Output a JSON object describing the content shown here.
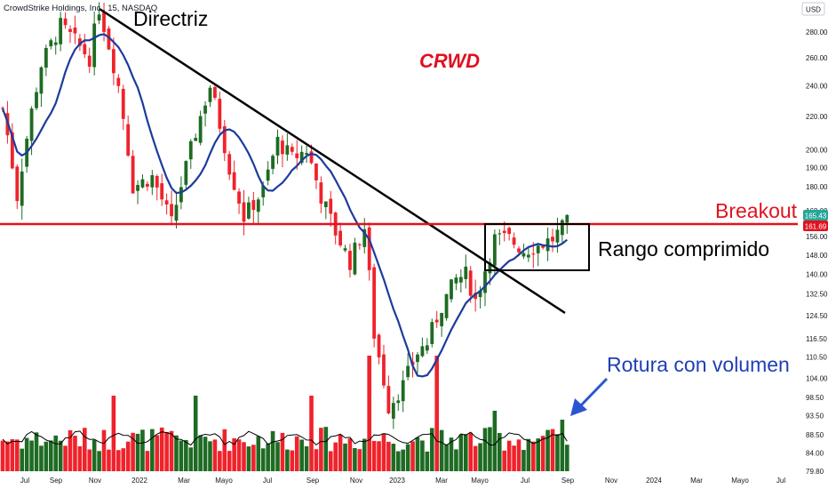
{
  "chart_data": {
    "type": "candlestick",
    "symbol_line": "CrowdStrike Holdings, Inc., 15, NASDAQ",
    "currency": "USD",
    "ticker_label": "CRWD",
    "y_scale": "log",
    "ylim": [
      79,
      300
    ],
    "y_ticks": [
      79.8,
      84,
      88.5,
      93.5,
      98.5,
      104,
      110.5,
      116.5,
      124.5,
      132.5,
      140,
      148,
      156,
      168,
      180,
      190,
      200,
      220,
      240,
      260,
      280
    ],
    "y_tick_labels": [
      "79.80",
      "84.00",
      "88.50",
      "93.50",
      "98.50",
      "104.00",
      "110.50",
      "116.50",
      "124.50",
      "132.50",
      "140.00",
      "148.00",
      "156.00",
      "168.00",
      "180.00",
      "190.00",
      "200.00",
      "220.00",
      "240.00",
      "260.00",
      "280.00"
    ],
    "x_ticks": [
      "Jul",
      "Sep",
      "Nov",
      "2022",
      "Mar",
      "Mayo",
      "Jul",
      "Sep",
      "Nov",
      "2023",
      "Mar",
      "Mayo",
      "Jul",
      "Sep",
      "Nov",
      "2024",
      "Mar",
      "Mayo",
      "Jul"
    ],
    "price_badges": {
      "last": "165.43",
      "level": "161.69"
    },
    "annotations": {
      "trendline": "Directriz",
      "breakout": "Breakout",
      "range": "Rango comprimido",
      "volume_break": "Rotura con volumen"
    },
    "colors": {
      "up": "#1e6b23",
      "down": "#f0222b",
      "ma": "#1c3c9a",
      "resistance": "#e0121f",
      "annotation_blue": "#1f3fb5",
      "ticker": "#e01020",
      "last_badge": "#26a69a"
    }
  }
}
